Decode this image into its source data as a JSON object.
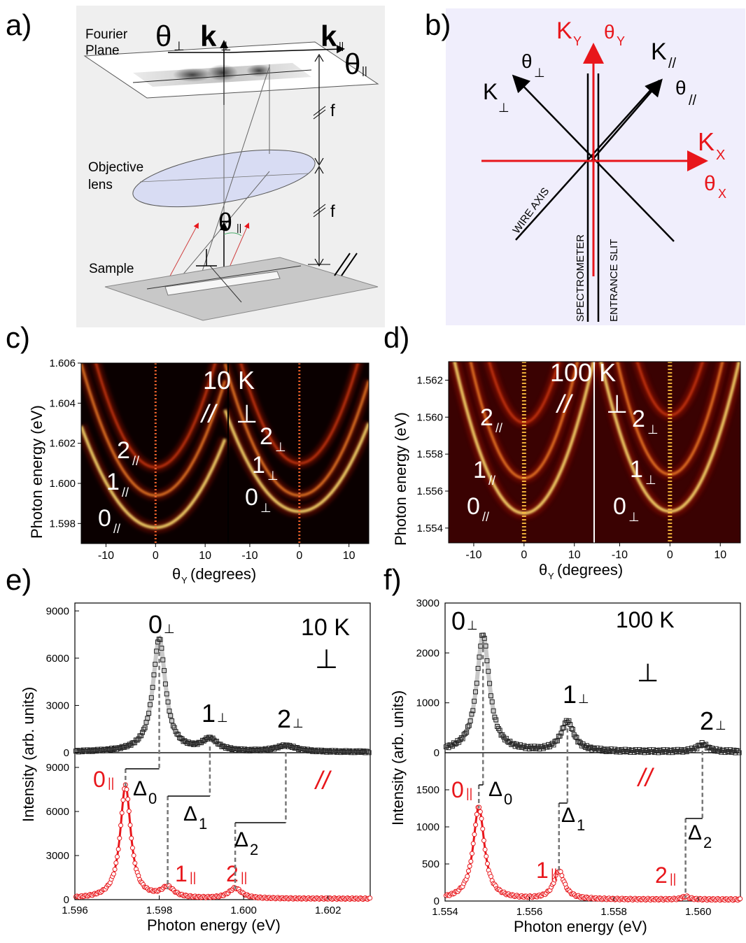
{
  "panels": {
    "a": {
      "label": "a)",
      "fourier_plane": [
        "Fourier",
        "Plane"
      ],
      "objective_lens": [
        "Objective",
        "lens"
      ],
      "sample": "Sample",
      "f_label": "f",
      "theta": "θ",
      "k": "k",
      "perp": "⊥",
      "par": "||",
      "parallel_mark": "//"
    },
    "b": {
      "label": "b)",
      "k_y": "K",
      "k_y_sub": "Y",
      "theta_y": "θ",
      "theta_y_sub": "Y",
      "k_x": "K",
      "k_x_sub": "X",
      "theta_x": "θ",
      "theta_x_sub": "X",
      "k_perp": "K",
      "k_perp_sub": "⊥",
      "theta_perp": "θ",
      "theta_perp_sub": "⊥",
      "k_par": "K",
      "k_par_sub": "//",
      "theta_par": "θ",
      "theta_par_sub": "//",
      "wire_axis": "WIRE AXIS",
      "spectrometer": "SPECTROMETER",
      "entrance_slit": "ENTRANCE SLIT",
      "colors": {
        "background": "#f0eefc",
        "red": "#e8161b",
        "black": "#000000"
      }
    },
    "c": {
      "label": "c)",
      "temp": "10 K",
      "par_mark": "//",
      "perp_mark": "⊥"
    },
    "d": {
      "label": "d)",
      "temp": "100 K",
      "par_mark": "//",
      "perp_mark": "⊥"
    },
    "e": {
      "label": "e)",
      "temp": "10 K",
      "perp_mark": "⊥",
      "par_mark": "//"
    },
    "f": {
      "label": "f)",
      "temp": "100 K",
      "perp_mark": "⊥",
      "par_mark": "//"
    }
  },
  "chart_data": [
    {
      "panel": "c",
      "type": "heatmap",
      "xlabel": "θ",
      "xlabel_sub": "Y",
      "xlabel_unit": "(degrees)",
      "ylabel": "Photon energy (eV)",
      "x_ticks": [
        "-10",
        "0",
        "10",
        "-10",
        "0",
        "10"
      ],
      "y_ticks": [
        "1.598",
        "1.600",
        "1.602",
        "1.604",
        "1.606"
      ],
      "ylim": [
        1.597,
        1.606
      ],
      "xlim_each_half": [
        -15,
        14
      ],
      "modes": [
        {
          "label": "0",
          "sub": "//",
          "energy": 1.5978,
          "half": "par"
        },
        {
          "label": "1",
          "sub": "//",
          "energy": 1.5994,
          "half": "par"
        },
        {
          "label": "2",
          "sub": "//",
          "energy": 1.6008,
          "half": "par"
        },
        {
          "label": "0",
          "sub": "⊥",
          "energy": 1.5986,
          "half": "perp"
        },
        {
          "label": "1",
          "sub": "⊥",
          "energy": 1.5994,
          "half": "perp"
        },
        {
          "label": "2",
          "sub": "⊥",
          "energy": 1.601,
          "half": "perp"
        }
      ]
    },
    {
      "panel": "d",
      "type": "heatmap",
      "xlabel": "θ",
      "xlabel_sub": "Y",
      "xlabel_unit": "(degrees)",
      "ylabel": "Photon energy (eV)",
      "x_ticks": [
        "-10",
        "0",
        "10",
        "-10",
        "0",
        "10"
      ],
      "y_ticks": [
        "1.554",
        "1.556",
        "1.558",
        "1.560",
        "1.562"
      ],
      "ylim": [
        1.5532,
        1.563
      ],
      "xlim_each_half": [
        -15,
        14
      ],
      "modes": [
        {
          "label": "0",
          "sub": "//",
          "energy": 1.5548,
          "half": "par"
        },
        {
          "label": "1",
          "sub": "//",
          "energy": 1.5567,
          "half": "par"
        },
        {
          "label": "2",
          "sub": "//",
          "energy": 1.5597,
          "half": "par"
        },
        {
          "label": "0",
          "sub": "⊥",
          "energy": 1.5549,
          "half": "perp"
        },
        {
          "label": "1",
          "sub": "⊥",
          "energy": 1.5569,
          "half": "perp"
        },
        {
          "label": "2",
          "sub": "⊥",
          "energy": 1.5601,
          "half": "perp"
        }
      ]
    },
    {
      "panel": "e",
      "type": "line",
      "xlabel": "Photon energy (eV)",
      "ylabel": "Intensity (arb. units)",
      "xlim": [
        1.596,
        1.603
      ],
      "x_ticks": [
        "1.596",
        "1.598",
        "1.600",
        "1.602"
      ],
      "top": {
        "ylim": [
          0,
          9500
        ],
        "y_ticks": [
          "0",
          "3000",
          "6000",
          "9000"
        ],
        "peaks": [
          {
            "label": "0",
            "sub": "⊥",
            "x": 1.598,
            "height": 7200,
            "width": 0.00018
          },
          {
            "label": "1",
            "sub": "⊥",
            "x": 1.5992,
            "height": 750,
            "width": 0.00022
          },
          {
            "label": "2",
            "sub": "⊥",
            "x": 1.601,
            "height": 380,
            "width": 0.0003
          }
        ]
      },
      "bottom": {
        "ylim": [
          0,
          10000
        ],
        "y_ticks": [
          "0",
          "3000",
          "6000",
          "9000"
        ],
        "peaks": [
          {
            "label": "0",
            "sub": "||",
            "x": 1.5972,
            "height": 7700,
            "width": 0.00015
          },
          {
            "label": "1",
            "sub": "||",
            "x": 1.5982,
            "height": 700,
            "width": 0.00018
          },
          {
            "label": "2",
            "sub": "||",
            "x": 1.5998,
            "height": 700,
            "width": 0.00018
          }
        ]
      },
      "deltas": [
        {
          "label": "Δ",
          "sub": "0"
        },
        {
          "label": "Δ",
          "sub": "1"
        },
        {
          "label": "Δ",
          "sub": "2"
        }
      ]
    },
    {
      "panel": "f",
      "type": "line",
      "xlabel": "Photon energy (eV)",
      "ylabel": "Intensity (arb. units)",
      "xlim": [
        1.554,
        1.561
      ],
      "x_ticks": [
        "1.554",
        "1.556",
        "1.558",
        "1.560"
      ],
      "top": {
        "ylim": [
          0,
          3000
        ],
        "y_ticks": [
          "0",
          "1000",
          "2000",
          "3000"
        ],
        "peaks": [
          {
            "label": "0",
            "sub": "⊥",
            "x": 1.5549,
            "height": 2350,
            "width": 0.00018
          },
          {
            "label": "1",
            "sub": "⊥",
            "x": 1.5569,
            "height": 600,
            "width": 0.00018
          },
          {
            "label": "2",
            "sub": "⊥",
            "x": 1.5601,
            "height": 150,
            "width": 0.00015
          }
        ]
      },
      "bottom": {
        "ylim": [
          0,
          2000
        ],
        "y_ticks": [
          "0",
          "500",
          "1000",
          "1500"
        ],
        "peaks": [
          {
            "label": "0",
            "sub": "||",
            "x": 1.5548,
            "height": 1250,
            "width": 0.00016
          },
          {
            "label": "1",
            "sub": "||",
            "x": 1.5567,
            "height": 380,
            "width": 0.00015
          },
          {
            "label": "2",
            "sub": "||",
            "x": 1.5597,
            "height": 40,
            "width": 0.0001
          }
        ]
      },
      "deltas": [
        {
          "label": "Δ",
          "sub": "0"
        },
        {
          "label": "Δ",
          "sub": "1"
        },
        {
          "label": "Δ",
          "sub": "2"
        }
      ]
    }
  ]
}
